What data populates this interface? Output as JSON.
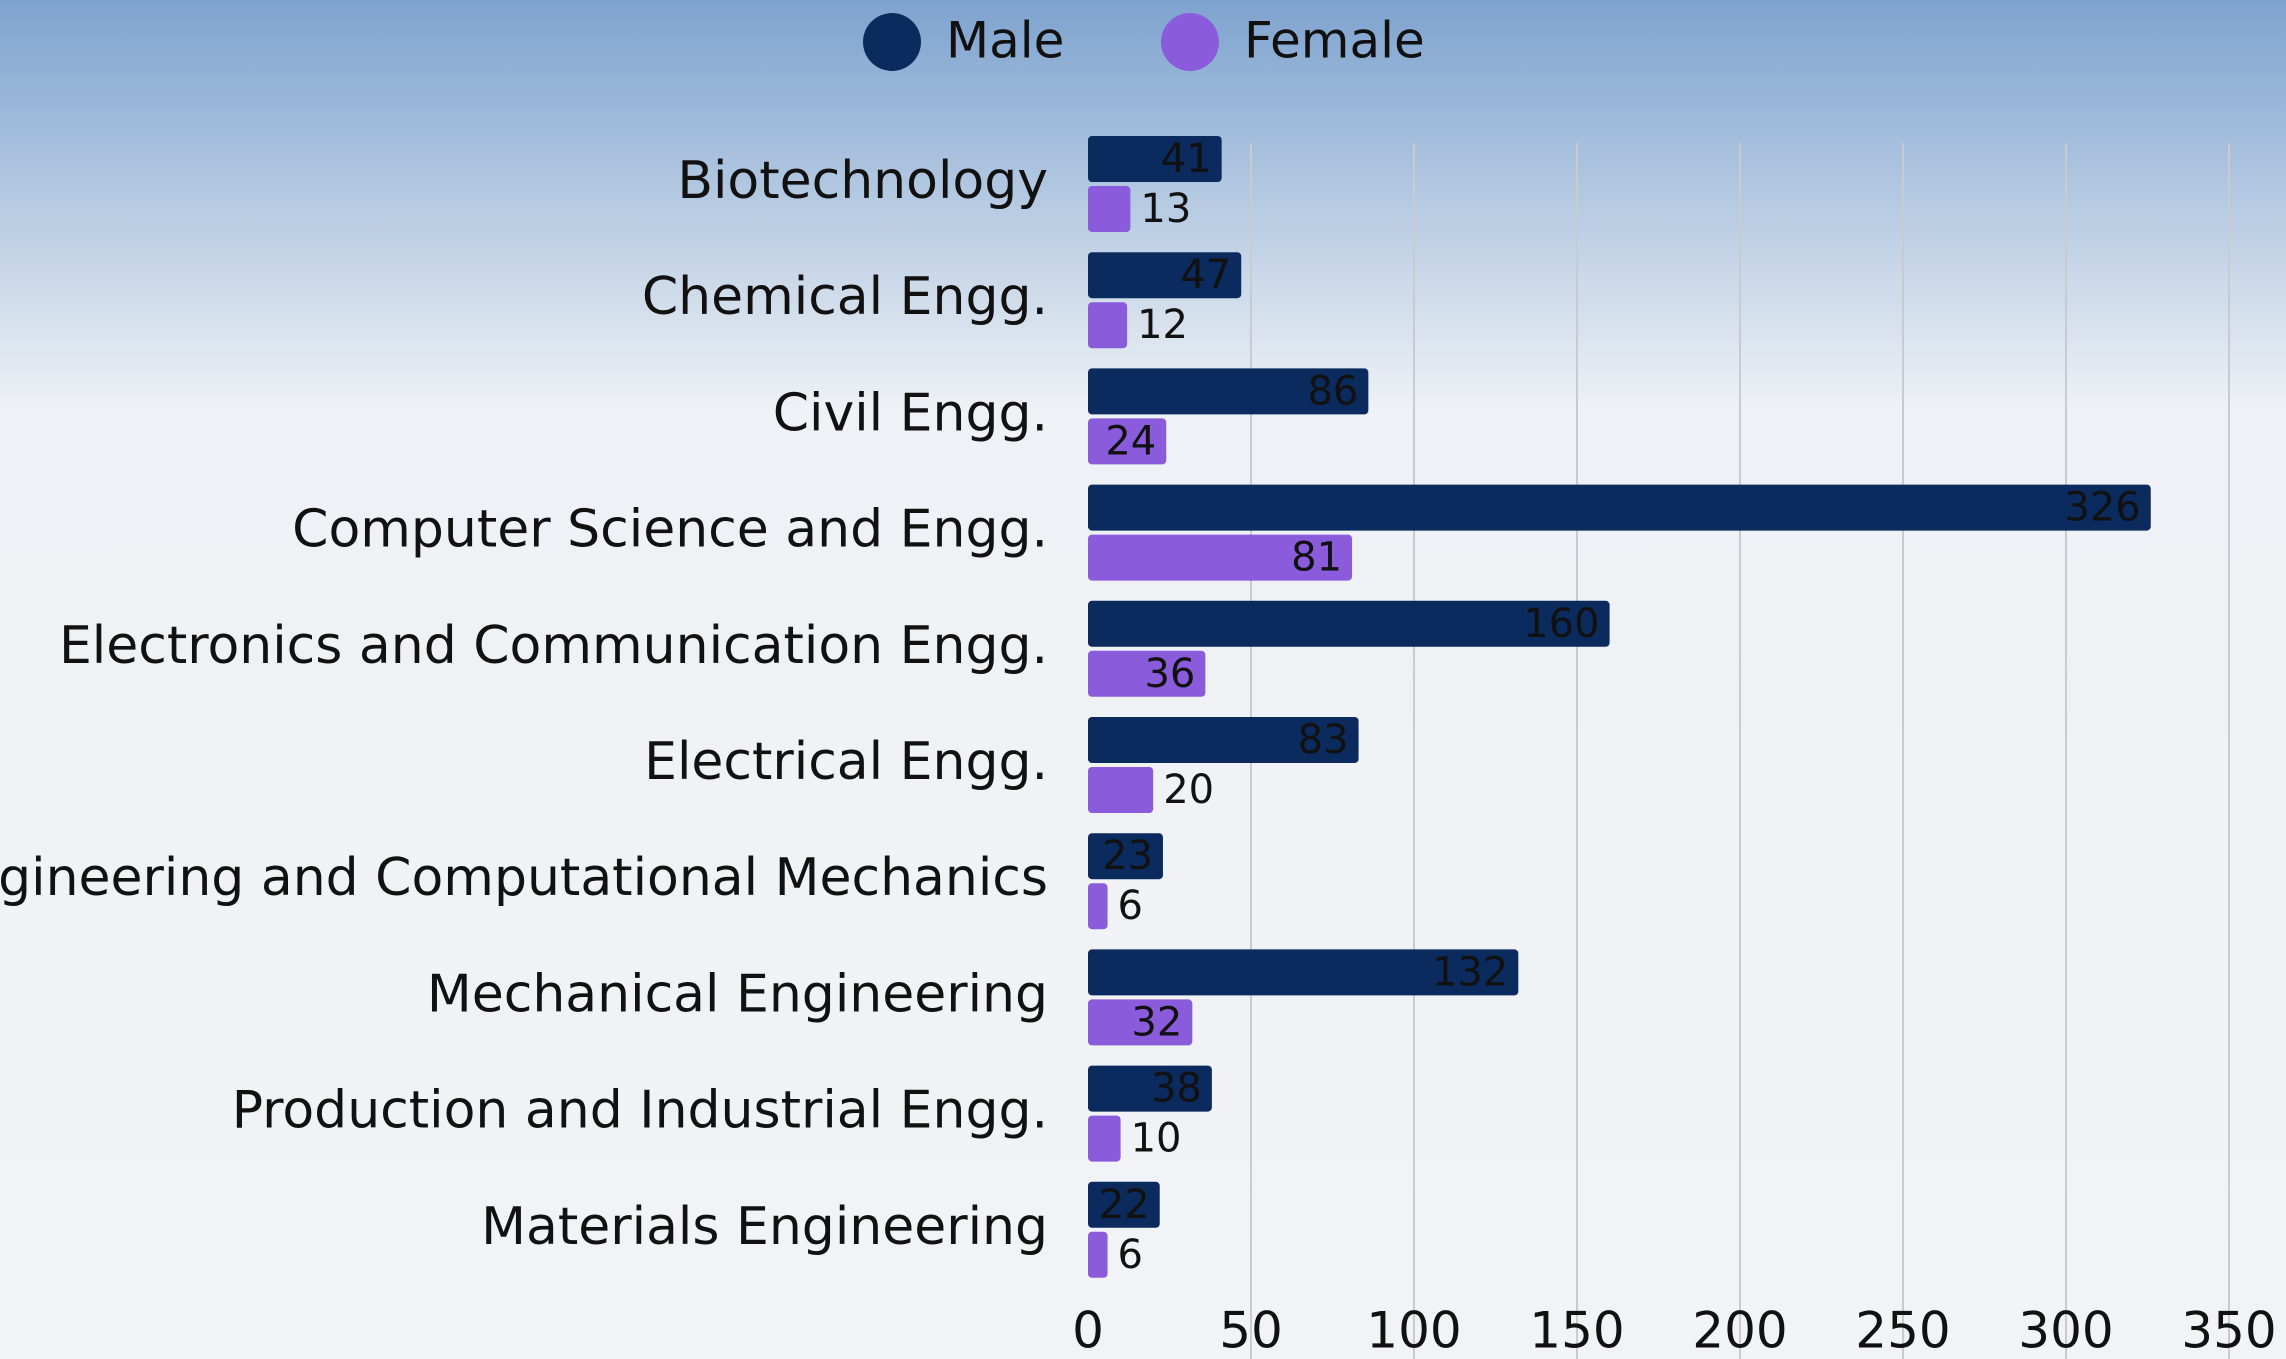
{
  "chart_data": {
    "type": "bar",
    "orientation": "horizontal",
    "categories": [
      "Biotechnology",
      "Chemical Engg.",
      "Civil Engg.",
      "Computer Science and Engg.",
      "Electronics and Communication Engg.",
      "Electrical Engg.",
      "Engineering and Computational Mechanics",
      "Mechanical Engineering",
      "Production and Industrial Engg.",
      "Materials Engineering"
    ],
    "series": [
      {
        "name": "Male",
        "color": "#0b2b5e",
        "values": [
          41,
          47,
          86,
          326,
          160,
          83,
          23,
          132,
          38,
          22
        ]
      },
      {
        "name": "Female",
        "color": "#8a5cdb",
        "values": [
          13,
          12,
          24,
          81,
          36,
          20,
          6,
          32,
          10,
          6
        ]
      }
    ],
    "xlim": [
      0,
      350
    ],
    "xticks": [
      0,
      50,
      100,
      150,
      200,
      250,
      300,
      350
    ],
    "grid": true,
    "legend": "top"
  }
}
